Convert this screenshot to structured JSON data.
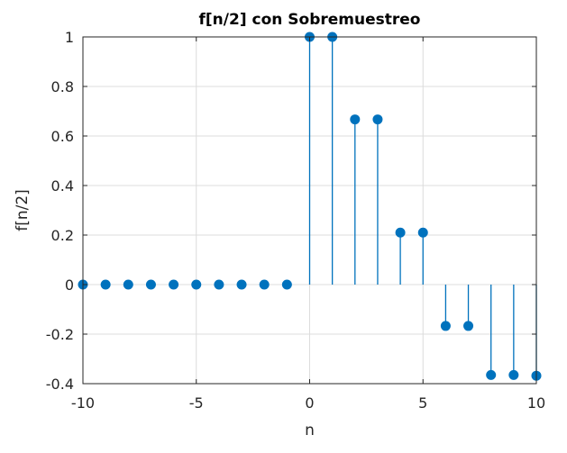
{
  "chart_data": {
    "type": "stem",
    "title": "f[n/2] con Sobremuestreo",
    "xlabel": "n",
    "ylabel": "f[n/2]",
    "xlim": [
      -10,
      10
    ],
    "ylim": [
      -0.4,
      1
    ],
    "xticks": [
      "-10",
      "-5",
      "0",
      "5",
      "10"
    ],
    "yticks": [
      "-0.4",
      "-0.2",
      "0",
      "0.2",
      "0.4",
      "0.6",
      "0.8",
      "1"
    ],
    "grid": true,
    "color": "#0072bd",
    "x": [
      -10,
      -9,
      -8,
      -7,
      -6,
      -5,
      -4,
      -3,
      -2,
      -1,
      0,
      1,
      2,
      3,
      4,
      5,
      6,
      7,
      8,
      9,
      10
    ],
    "values": [
      0,
      0,
      0,
      0,
      0,
      0,
      0,
      0,
      0,
      0,
      1,
      1,
      0.667,
      0.667,
      0.21,
      0.21,
      -0.167,
      -0.167,
      -0.365,
      -0.365,
      -0.368
    ]
  }
}
